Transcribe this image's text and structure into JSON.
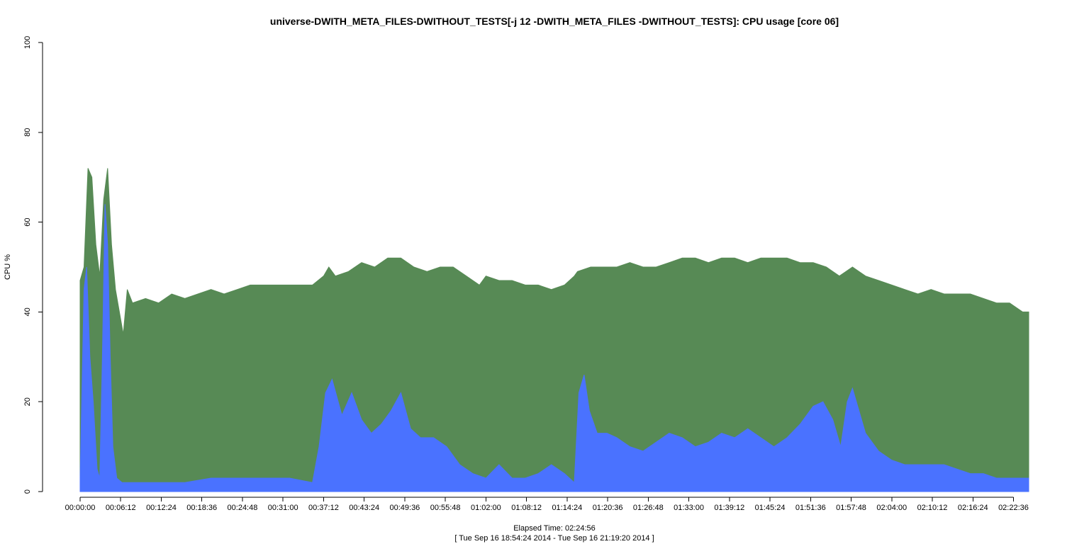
{
  "chart_data": {
    "type": "area",
    "title": "universe-DWITH_META_FILES-DWITHOUT_TESTS[-j 12 -DWITH_META_FILES -DWITHOUT_TESTS]: CPU usage [core 06]",
    "ylabel": "CPU %",
    "xlabel": "Elapsed Time: 02:24:56",
    "xlabel_sub": "[ Tue Sep 16 18:54:24 2014 - Tue Sep 16 21:19:20 2014 ]",
    "ylim": [
      0,
      100
    ],
    "yticks": [
      0,
      20,
      40,
      60,
      80,
      100
    ],
    "x_unit": "minutes elapsed",
    "xlim": [
      0,
      144.93
    ],
    "xticks": [
      {
        "value": 0.0,
        "label": "00:00:00"
      },
      {
        "value": 6.2,
        "label": "00:06:12"
      },
      {
        "value": 12.4,
        "label": "00:12:24"
      },
      {
        "value": 18.6,
        "label": "00:18:36"
      },
      {
        "value": 24.8,
        "label": "00:24:48"
      },
      {
        "value": 31.0,
        "label": "00:31:00"
      },
      {
        "value": 37.2,
        "label": "00:37:12"
      },
      {
        "value": 43.4,
        "label": "00:43:24"
      },
      {
        "value": 49.6,
        "label": "00:49:36"
      },
      {
        "value": 55.8,
        "label": "00:55:48"
      },
      {
        "value": 62.0,
        "label": "01:02:00"
      },
      {
        "value": 68.2,
        "label": "01:08:12"
      },
      {
        "value": 74.4,
        "label": "01:14:24"
      },
      {
        "value": 80.6,
        "label": "01:20:36"
      },
      {
        "value": 86.8,
        "label": "01:26:48"
      },
      {
        "value": 93.0,
        "label": "01:33:00"
      },
      {
        "value": 99.2,
        "label": "01:39:12"
      },
      {
        "value": 105.4,
        "label": "01:45:24"
      },
      {
        "value": 111.6,
        "label": "01:51:36"
      },
      {
        "value": 117.8,
        "label": "01:57:48"
      },
      {
        "value": 124.0,
        "label": "02:04:00"
      },
      {
        "value": 130.2,
        "label": "02:10:12"
      },
      {
        "value": 136.4,
        "label": "02:16:24"
      },
      {
        "value": 142.6,
        "label": "02:22:36"
      }
    ],
    "series": [
      {
        "key": "total",
        "color": "#578a55",
        "values": [
          [
            0.0,
            47
          ],
          [
            0.6,
            50
          ],
          [
            1.2,
            72
          ],
          [
            1.8,
            70
          ],
          [
            2.4,
            55
          ],
          [
            3.0,
            48
          ],
          [
            3.6,
            65
          ],
          [
            4.2,
            72
          ],
          [
            4.8,
            55
          ],
          [
            5.4,
            45
          ],
          [
            6.0,
            40
          ],
          [
            6.6,
            35
          ],
          [
            7.2,
            45
          ],
          [
            8,
            42
          ],
          [
            10,
            43
          ],
          [
            12,
            42
          ],
          [
            14,
            44
          ],
          [
            16,
            43
          ],
          [
            18,
            44
          ],
          [
            20,
            45
          ],
          [
            22,
            44
          ],
          [
            24,
            45
          ],
          [
            26,
            46
          ],
          [
            28,
            46
          ],
          [
            30,
            46
          ],
          [
            32,
            46
          ],
          [
            34,
            46
          ],
          [
            35.5,
            46
          ],
          [
            37.2,
            48
          ],
          [
            38,
            50
          ],
          [
            39,
            48
          ],
          [
            41,
            49
          ],
          [
            43,
            51
          ],
          [
            45,
            50
          ],
          [
            47,
            52
          ],
          [
            49,
            52
          ],
          [
            51,
            50
          ],
          [
            53,
            49
          ],
          [
            55,
            50
          ],
          [
            57,
            50
          ],
          [
            59,
            48
          ],
          [
            61,
            46
          ],
          [
            62,
            48
          ],
          [
            64,
            47
          ],
          [
            66,
            47
          ],
          [
            68,
            46
          ],
          [
            70,
            46
          ],
          [
            72,
            45
          ],
          [
            74,
            46
          ],
          [
            75.5,
            48
          ],
          [
            76,
            49
          ],
          [
            78,
            50
          ],
          [
            80,
            50
          ],
          [
            82,
            50
          ],
          [
            84,
            51
          ],
          [
            86,
            50
          ],
          [
            88,
            50
          ],
          [
            90,
            51
          ],
          [
            92,
            52
          ],
          [
            94,
            52
          ],
          [
            96,
            51
          ],
          [
            98,
            52
          ],
          [
            100,
            52
          ],
          [
            102,
            51
          ],
          [
            104,
            52
          ],
          [
            106,
            52
          ],
          [
            108,
            52
          ],
          [
            110,
            51
          ],
          [
            112,
            51
          ],
          [
            114,
            50
          ],
          [
            116,
            48
          ],
          [
            118,
            50
          ],
          [
            120,
            48
          ],
          [
            122,
            47
          ],
          [
            124,
            46
          ],
          [
            126,
            45
          ],
          [
            128,
            44
          ],
          [
            130,
            45
          ],
          [
            132,
            44
          ],
          [
            134,
            44
          ],
          [
            136,
            44
          ],
          [
            138,
            43
          ],
          [
            140,
            42
          ],
          [
            142,
            42
          ],
          [
            144,
            40
          ],
          [
            144.93,
            40
          ]
        ]
      },
      {
        "key": "user",
        "color": "#4a72ff",
        "values": [
          [
            0.0,
            3
          ],
          [
            0.6,
            45
          ],
          [
            1.0,
            50
          ],
          [
            1.5,
            30
          ],
          [
            2.0,
            20
          ],
          [
            2.6,
            5
          ],
          [
            3.0,
            3
          ],
          [
            3.4,
            30
          ],
          [
            3.8,
            64
          ],
          [
            4.2,
            55
          ],
          [
            4.6,
            30
          ],
          [
            5.0,
            10
          ],
          [
            5.6,
            3
          ],
          [
            6.4,
            2
          ],
          [
            8,
            2
          ],
          [
            12,
            2
          ],
          [
            16,
            2
          ],
          [
            20,
            3
          ],
          [
            24,
            3
          ],
          [
            28,
            3
          ],
          [
            32,
            3
          ],
          [
            35.5,
            2
          ],
          [
            36.5,
            10
          ],
          [
            37.5,
            22
          ],
          [
            38.5,
            25
          ],
          [
            40,
            17
          ],
          [
            41.5,
            22
          ],
          [
            43,
            16
          ],
          [
            44.5,
            13
          ],
          [
            46,
            15
          ],
          [
            47.5,
            18
          ],
          [
            49,
            22
          ],
          [
            50.5,
            14
          ],
          [
            52,
            12
          ],
          [
            54,
            12
          ],
          [
            56,
            10
          ],
          [
            58,
            6
          ],
          [
            60,
            4
          ],
          [
            62,
            3
          ],
          [
            64,
            6
          ],
          [
            66,
            3
          ],
          [
            68,
            3
          ],
          [
            70,
            4
          ],
          [
            72,
            6
          ],
          [
            74,
            4
          ],
          [
            75.5,
            2
          ],
          [
            76.2,
            22
          ],
          [
            77,
            26
          ],
          [
            77.8,
            18
          ],
          [
            79,
            13
          ],
          [
            80.5,
            13
          ],
          [
            82,
            12
          ],
          [
            84,
            10
          ],
          [
            86,
            9
          ],
          [
            88,
            11
          ],
          [
            90,
            13
          ],
          [
            92,
            12
          ],
          [
            94,
            10
          ],
          [
            96,
            11
          ],
          [
            98,
            13
          ],
          [
            100,
            12
          ],
          [
            102,
            14
          ],
          [
            104,
            12
          ],
          [
            106,
            10
          ],
          [
            108,
            12
          ],
          [
            110,
            15
          ],
          [
            112,
            19
          ],
          [
            113.5,
            20
          ],
          [
            115,
            16
          ],
          [
            116.2,
            10
          ],
          [
            117.2,
            20
          ],
          [
            118,
            23
          ],
          [
            119,
            18
          ],
          [
            120,
            13
          ],
          [
            122,
            9
          ],
          [
            124,
            7
          ],
          [
            126,
            6
          ],
          [
            128,
            6
          ],
          [
            130,
            6
          ],
          [
            132,
            6
          ],
          [
            134,
            5
          ],
          [
            136,
            4
          ],
          [
            138,
            4
          ],
          [
            140,
            3
          ],
          [
            142,
            3
          ],
          [
            144,
            3
          ],
          [
            144.93,
            3
          ]
        ]
      }
    ]
  }
}
